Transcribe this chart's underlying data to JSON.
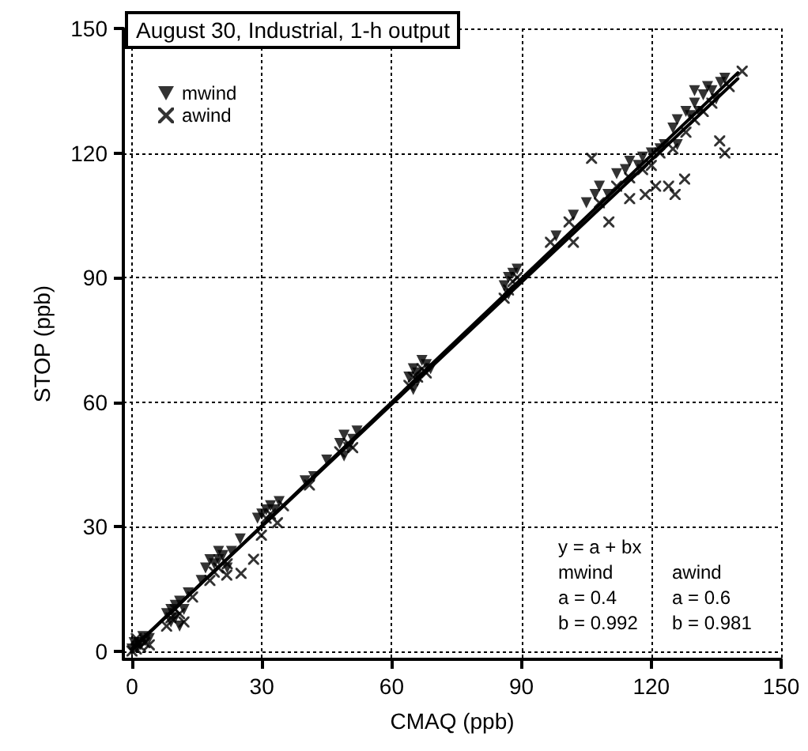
{
  "chart_data": {
    "type": "scatter",
    "title": "August 30, Industrial, 1-h output",
    "xlabel": "CMAQ (ppb)",
    "ylabel": "STOP (ppb)",
    "xlim": [
      -2,
      150
    ],
    "ylim": [
      -2,
      150
    ],
    "xticks": [
      0,
      30,
      60,
      90,
      120,
      150
    ],
    "yticks": [
      0,
      30,
      60,
      90,
      120,
      150
    ],
    "grid": true,
    "legend": "top left",
    "annotations": [
      "y = a + bx",
      "mwind\na = 0.4\nb = 0.992",
      "awind\na = 0.6\nb = 0.981"
    ],
    "series": [
      {
        "name": "mwind",
        "color": "#000000",
        "marker": "triangle",
        "x": [
          0,
          1,
          1.5,
          2,
          3,
          2.5,
          4,
          0.5,
          8,
          9,
          10,
          10,
          11,
          12,
          9,
          11,
          13,
          17,
          18,
          19,
          20,
          21,
          22,
          20,
          16,
          23,
          25,
          30,
          31,
          32,
          33,
          34,
          29,
          40,
          42,
          45,
          48,
          49,
          50,
          51,
          52,
          49,
          64,
          65,
          66,
          67,
          68,
          65,
          66,
          69,
          86,
          87,
          88,
          89,
          87,
          98,
          102,
          105,
          107,
          108,
          110,
          112,
          114,
          115,
          117,
          118,
          120,
          122,
          123,
          125,
          126,
          128,
          129,
          130,
          131,
          132,
          133,
          134,
          135,
          136,
          137,
          130,
          126
        ],
        "values": [
          0.5,
          1,
          2,
          1.5,
          2.5,
          3.5,
          3,
          2,
          9,
          10,
          8,
          11,
          12,
          10,
          7,
          6,
          14,
          20,
          22,
          21,
          22,
          23,
          20,
          24,
          17,
          24,
          27,
          33,
          34,
          35,
          34,
          36,
          32,
          41,
          42,
          46,
          50,
          52,
          49,
          51,
          53,
          47,
          66,
          68,
          67,
          70,
          69,
          63,
          65,
          68,
          88,
          90,
          91,
          92,
          86,
          100,
          105,
          108,
          110,
          112,
          110,
          115,
          116,
          118,
          117,
          119,
          120,
          121,
          122,
          126,
          128,
          130,
          129,
          132,
          130,
          134,
          136,
          135,
          133,
          137,
          138,
          135,
          122
        ]
      },
      {
        "name": "awind",
        "color": "#000000",
        "marker": "cross",
        "x": [
          0,
          1,
          2,
          3,
          4,
          1,
          8,
          9,
          10,
          11,
          12,
          14,
          18,
          19,
          20,
          21.9,
          25.2,
          28.1,
          29.9,
          33.6,
          22,
          31,
          32,
          35,
          41,
          48,
          50,
          51,
          64,
          65,
          66,
          67,
          68,
          86,
          87,
          88,
          89,
          96.7,
          101,
          102,
          106.2,
          110.2,
          115,
          118.6,
          121,
          124,
          125.5,
          127.7,
          108,
          112,
          115,
          118,
          120,
          122,
          125,
          128,
          130,
          132,
          134,
          135.8,
          137,
          138,
          141
        ],
        "values": [
          0,
          0.5,
          1,
          2,
          1.5,
          3,
          6,
          8,
          10,
          9,
          7,
          13,
          17,
          19,
          20,
          18.3,
          18.7,
          22.1,
          27.9,
          30.9,
          21,
          32,
          33,
          35,
          40,
          48,
          50,
          49,
          64,
          66,
          66,
          68,
          67,
          85,
          87,
          89,
          90,
          98.5,
          103.4,
          98.5,
          118.7,
          103.4,
          109,
          110,
          112,
          112,
          110,
          113.7,
          108,
          112,
          114,
          116,
          117,
          120,
          121,
          125,
          128,
          130,
          132,
          122.9,
          120,
          136,
          139.7
        ]
      },
      {
        "type": "line",
        "color": "#000000",
        "marker": "none",
        "line_style": "solid",
        "x": [
          0,
          140
        ],
        "values": [
          0.4,
          139.3
        ]
      },
      {
        "type": "line",
        "color": "#000000",
        "marker": "none",
        "line_style": "solid",
        "x": [
          0,
          140
        ],
        "values": [
          0.6,
          137.9
        ]
      }
    ]
  }
}
